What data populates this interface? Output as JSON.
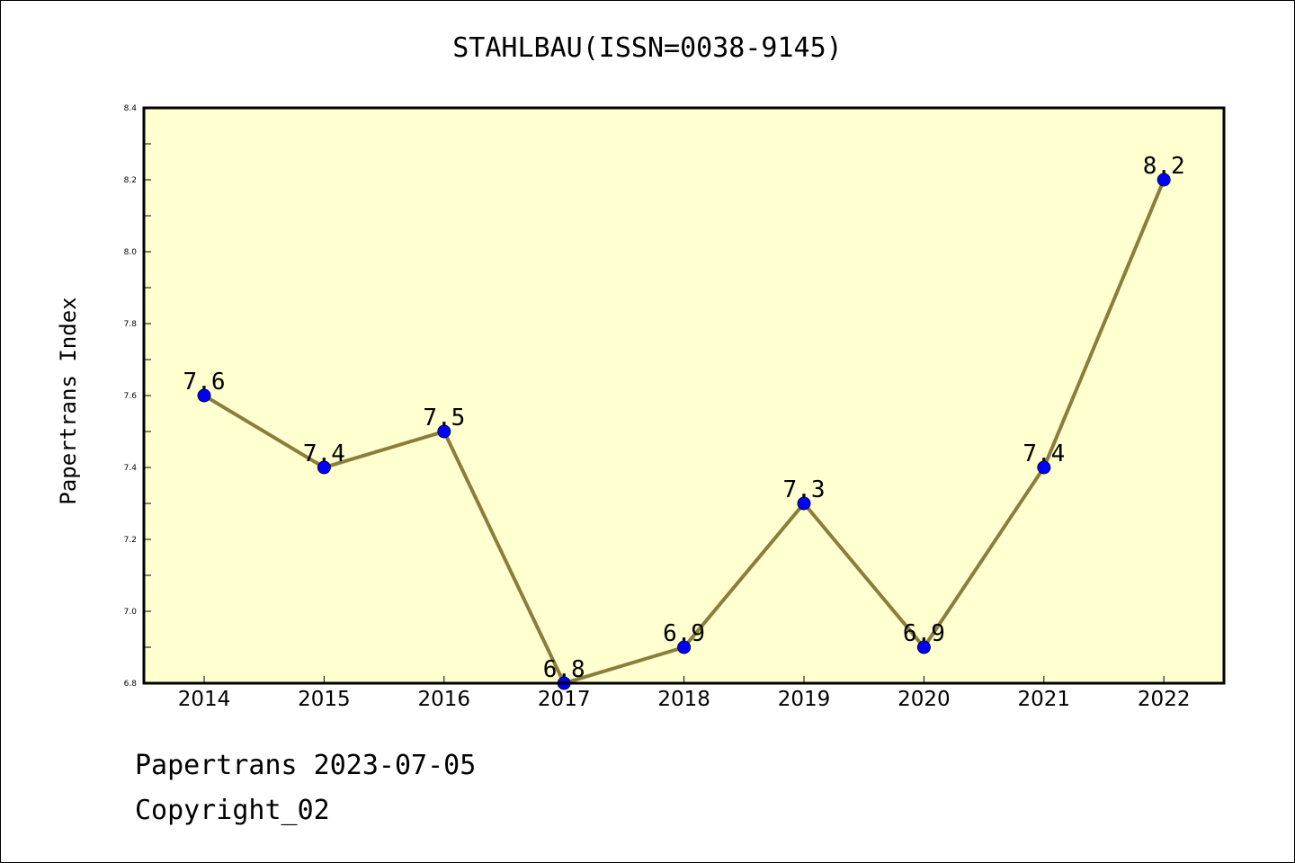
{
  "chart_data": {
    "type": "line",
    "title": "STAHLBAU(ISSN=0038-9145)",
    "ylabel": "Papertrans Index",
    "xlabel": "",
    "categories": [
      "2014",
      "2015",
      "2016",
      "2017",
      "2018",
      "2019",
      "2020",
      "2021",
      "2022"
    ],
    "series": [
      {
        "values": [
          7.6,
          7.4,
          7.5,
          6.8,
          6.9,
          7.3,
          6.9,
          7.4,
          8.2
        ]
      }
    ],
    "data_labels": [
      "7.6",
      "7.4",
      "7.5",
      "6.8",
      "6.9",
      "7.3",
      "6.9",
      "7.4",
      "8.2"
    ],
    "ylim": [
      6.8,
      8.4
    ],
    "yticks": [
      "6.8",
      "7.0",
      "7.2",
      "7.4",
      "7.6",
      "7.8",
      "8.0",
      "8.2",
      "8.4"
    ],
    "grid": false,
    "colors": {
      "plot_background": "#FFFFD0",
      "line": "#8B7D3A",
      "marker": "#0000FF"
    }
  },
  "footer": {
    "line1": "Papertrans 2023-07-05",
    "line2": "Copyright_02"
  }
}
